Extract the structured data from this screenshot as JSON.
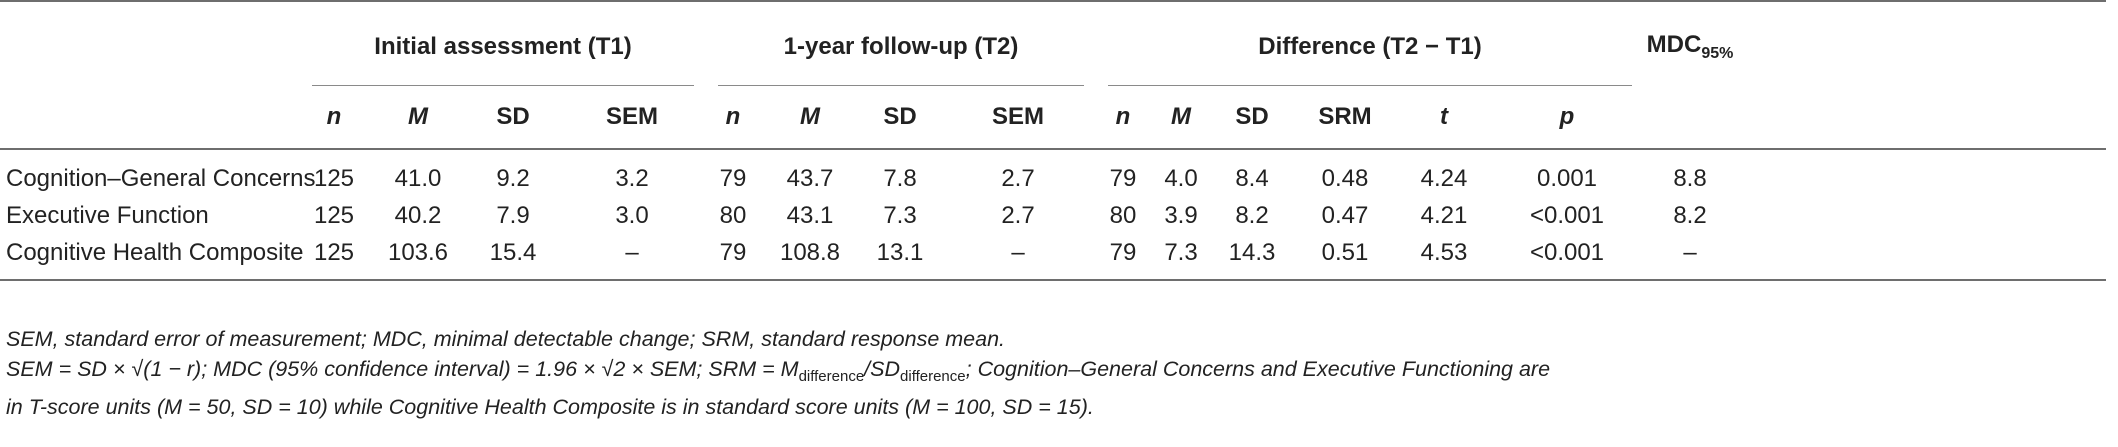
{
  "table": {
    "groups": {
      "t1": "Initial assessment (T1)",
      "t2": "1-year follow-up (T2)",
      "diff": "Difference (T2 − T1)",
      "mdc": "MDC",
      "mdc_sub": "95%"
    },
    "columns": {
      "n": "n",
      "m": "M",
      "sd": "SD",
      "sem": "SEM",
      "srm": "SRM",
      "t": "t",
      "p": "p"
    },
    "rows": [
      {
        "label": "Cognition–General Concerns",
        "t1": [
          "125",
          "41.0",
          "9.2",
          "3.2"
        ],
        "t2": [
          "79",
          "43.7",
          "7.8",
          "2.7"
        ],
        "diff": [
          "79",
          "4.0",
          "8.4",
          "0.48",
          "4.24",
          "0.001"
        ],
        "mdc": "8.8"
      },
      {
        "label": "Executive Function",
        "t1": [
          "125",
          "40.2",
          "7.9",
          "3.0"
        ],
        "t2": [
          "80",
          "43.1",
          "7.3",
          "2.7"
        ],
        "diff": [
          "80",
          "3.9",
          "8.2",
          "0.47",
          "4.21",
          "<0.001"
        ],
        "mdc": "8.2"
      },
      {
        "label": "Cognitive Health Composite",
        "t1": [
          "125",
          "103.6",
          "15.4",
          "–"
        ],
        "t2": [
          "79",
          "108.8",
          "13.1",
          "–"
        ],
        "diff": [
          "79",
          "7.3",
          "14.3",
          "0.51",
          "4.53",
          "<0.001"
        ],
        "mdc": "–"
      }
    ]
  },
  "notes": {
    "line1": "SEM, standard error of measurement; MDC, minimal detectable change; SRM, standard response mean.",
    "line2_a": "SEM = SD × ",
    "line2_b": "(1 − r); MDC (95% confidence interval) = 1.96 × ",
    "line2_c": "2 × SEM; SRM = M",
    "line2_sub1": "difference",
    "line2_d": "/SD",
    "line2_sub2": "difference",
    "line2_e": "; Cognition–General Concerns and Executive Functioning are",
    "line3": "in T-score units (M = 50, SD = 10) while Cognitive Health Composite is in standard score units (M = 100, SD = 15)."
  }
}
